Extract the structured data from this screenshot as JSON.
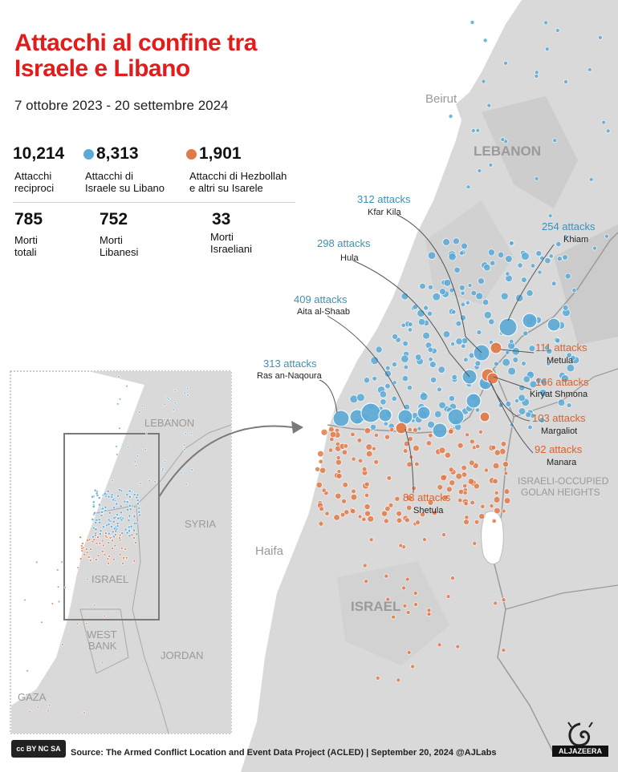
{
  "title": "Attacchi al confine tra Israele e Libano",
  "subtitle": "7 ottobre 2023 - 20 settembre 2024",
  "colors": {
    "israel_attacks": "#5aa9d6",
    "hezbollah_attacks": "#e07a4a",
    "title": "#e21b1b",
    "callout_blue": "#3f8fb5",
    "callout_orange": "#d9622b"
  },
  "stats": {
    "total_attacks": {
      "value": "10,214",
      "label_l1": "Attacchi",
      "label_l2": "reciproci"
    },
    "israel_attacks": {
      "value": "8,313",
      "label_l1": "Attacchi di",
      "label_l2": "Israele su Libano"
    },
    "hezbollah_attacks": {
      "value": "1,901",
      "label_l1": "Attacchi di Hezbollah",
      "label_l2": "e altri su Isarele"
    },
    "total_deaths": {
      "value": "785",
      "label_l1": "Morti",
      "label_l2": "totali"
    },
    "lebanese_deaths": {
      "value": "752",
      "label_l1": "Morti",
      "label_l2": "Libanesi"
    },
    "israeli_deaths": {
      "value": "33",
      "label_l1": "Morti",
      "label_l2": "Israeliani"
    }
  },
  "map_labels": {
    "beirut": "Beirut",
    "lebanon": "LEBANON",
    "haifa": "Haifa",
    "israel": "ISRAEL",
    "golan_l1": "ISRAELI-OCCUPIED",
    "golan_l2": "GOLAN HEIGHTS"
  },
  "inset_labels": {
    "lebanon": "LEBANON",
    "syria": "SYRIA",
    "israel": "ISRAEL",
    "west_bank_l1": "WEST",
    "west_bank_l2": "BANK",
    "jordan": "JORDAN",
    "gaza": "GAZA"
  },
  "callouts": {
    "kfar_kila": {
      "count": "312 attacks",
      "place": "Kfar Kila"
    },
    "khiam": {
      "count": "254 attacks",
      "place": "Khiam"
    },
    "hula": {
      "count": "298 attacks",
      "place": "Hula"
    },
    "aita": {
      "count": "409 attacks",
      "place": "Aita al-Shaab"
    },
    "naqoura": {
      "count": "313 attacks",
      "place": "Ras an-Naqoura"
    },
    "metula": {
      "count": "111 attacks",
      "place": "Metula"
    },
    "kiryat": {
      "count": "166 attacks",
      "place": "Kiryat Shmona"
    },
    "margaliot": {
      "count": "103 attacks",
      "place": "Margaliot"
    },
    "manara": {
      "count": "92 attacks",
      "place": "Manara"
    },
    "shetula": {
      "count": "83 attacks",
      "place": "Shetula"
    }
  },
  "footer": {
    "license": "cc BY NC SA",
    "source": "Source:  The Armed Conflict Location and Event Data Project (ACLED) | September 20, 2024   @AJLabs",
    "brand": "ALJAZEERA"
  }
}
